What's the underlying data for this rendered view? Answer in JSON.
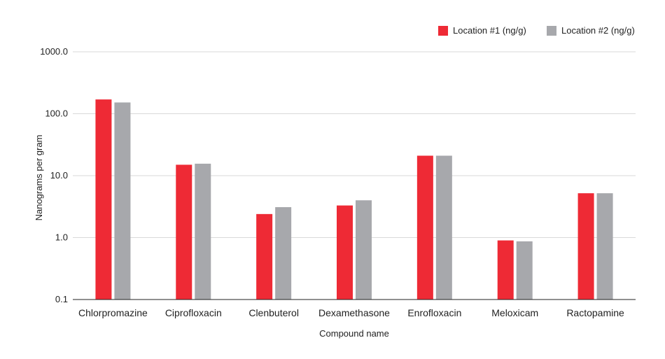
{
  "chart_data": {
    "type": "bar",
    "scale": "log",
    "ylim": [
      0.1,
      1000
    ],
    "yticks": [
      "0.1",
      "1.0",
      "10.0",
      "100.0",
      "1000.0"
    ],
    "ytick_values": [
      0.1,
      1,
      10,
      100,
      1000
    ],
    "xlabel": "Compound name",
    "ylabel": "Nanograms per gram",
    "grid": true,
    "legend_position": "top-right",
    "categories": [
      "Chlorpromazine",
      "Ciprofloxacin",
      "Clenbuterol",
      "Dexamethasone",
      "Enrofloxacin",
      "Meloxicam",
      "Ractopamine"
    ],
    "series": [
      {
        "name": "Location #1 (ng/g)",
        "color": "#EE2A35",
        "values": [
          170,
          15,
          2.4,
          3.3,
          21,
          0.9,
          5.2
        ]
      },
      {
        "name": "Location #2 (ng/g)",
        "color": "#A7A8AC",
        "values": [
          152,
          15.6,
          3.1,
          4.0,
          21,
          0.87,
          5.2
        ]
      }
    ]
  }
}
